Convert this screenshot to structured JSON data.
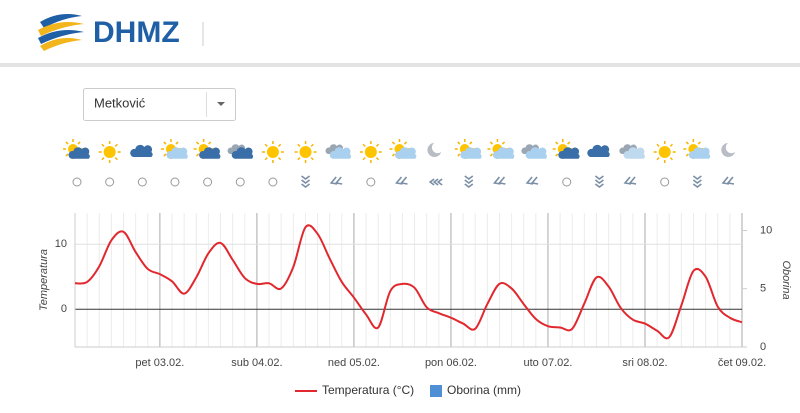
{
  "header": {
    "logo_text": "DHMZ"
  },
  "location_select": {
    "value": "Metković"
  },
  "chart_data": {
    "type": "line",
    "categories": [
      null,
      null,
      null,
      null,
      null,
      null,
      null,
      "pet 03.02.",
      null,
      null,
      null,
      null,
      null,
      null,
      null,
      "sub 04.02.",
      null,
      null,
      null,
      null,
      null,
      null,
      null,
      "ned 05.02.",
      null,
      null,
      null,
      null,
      null,
      null,
      null,
      "pon 06.02.",
      null,
      null,
      null,
      null,
      null,
      null,
      null,
      "uto 07.02.",
      null,
      null,
      null,
      null,
      null,
      null,
      null,
      "sri 08.02.",
      null,
      null,
      null,
      null,
      null,
      null,
      null,
      "čet 09.02."
    ],
    "series": [
      {
        "name": "Temperatura (°C)",
        "color": "#e0282e",
        "values": [
          4.0,
          4.2,
          6.6,
          10.6,
          11.9,
          8.8,
          6.2,
          5.4,
          4.3,
          2.4,
          4.9,
          8.6,
          10.2,
          7.6,
          4.8,
          3.9,
          4.0,
          3.2,
          6.5,
          12.6,
          11.6,
          7.8,
          4.2,
          1.8,
          -0.8,
          -2.8,
          2.8,
          3.9,
          3.3,
          0.3,
          -0.6,
          -1.3,
          -2.2,
          -3.0,
          0.8,
          3.9,
          3.2,
          0.8,
          -1.5,
          -2.6,
          -2.8,
          -3.0,
          0.9,
          4.9,
          3.5,
          0.2,
          -1.6,
          -2.2,
          -3.3,
          -4.3,
          0.6,
          5.9,
          5.0,
          0.4,
          -1.3,
          -2.0
        ]
      },
      {
        "name": "Oborina (mm)",
        "color": "#4f8fd6",
        "axis": "y2",
        "type": "bar",
        "values": [
          0,
          0,
          0,
          0,
          0,
          0,
          0,
          0,
          0,
          0,
          0,
          0,
          0,
          0,
          0,
          0,
          0,
          0,
          0,
          0,
          0,
          0,
          0,
          0,
          0,
          0,
          0,
          0,
          0,
          0,
          0,
          0,
          0,
          0,
          0,
          0,
          0,
          0,
          0,
          0,
          0,
          0,
          0,
          0,
          0,
          0,
          0,
          0,
          0,
          0,
          0,
          0,
          0,
          0,
          0,
          0
        ]
      }
    ],
    "ylabel": "Temperatura",
    "y2label": "Oborina",
    "ylim": [
      -5.8,
      14.8
    ],
    "yticks": [
      0,
      10
    ],
    "y2lim": [
      0,
      11.5
    ],
    "y2ticks": [
      0,
      5,
      10
    ],
    "grid": true
  }
}
